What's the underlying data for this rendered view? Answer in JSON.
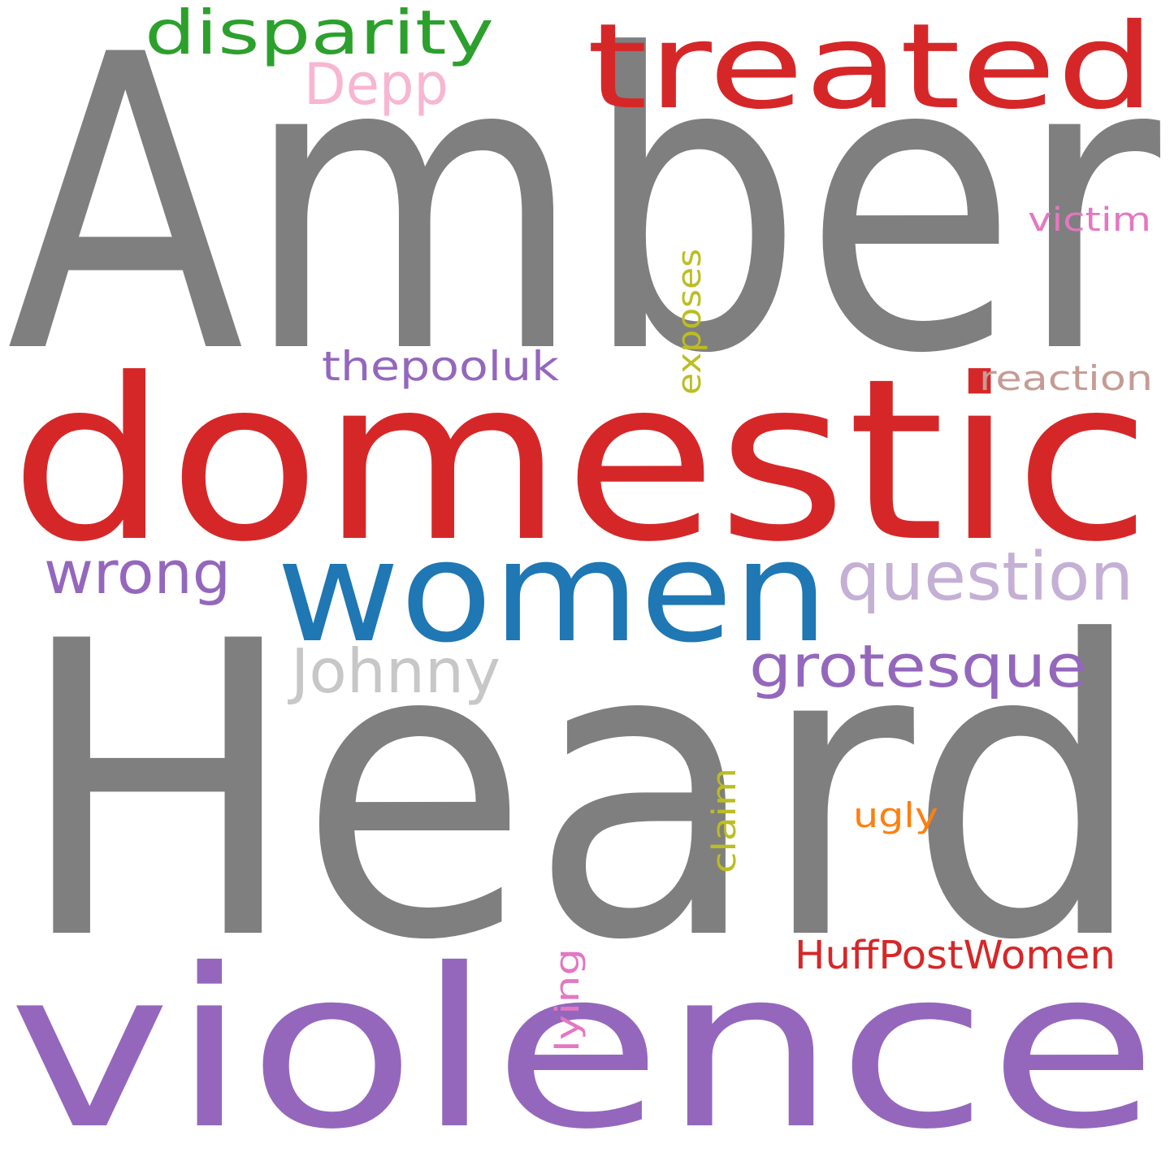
{
  "words": [
    {
      "id": "amber",
      "text": "Amber",
      "color": "#7f7f7f"
    },
    {
      "id": "heard",
      "text": "Heard",
      "color": "#7f7f7f"
    },
    {
      "id": "domestic",
      "text": "domestic",
      "color": "#d62728"
    },
    {
      "id": "violence",
      "text": "violence",
      "color": "#9467bd"
    },
    {
      "id": "treated",
      "text": "treated",
      "color": "#d62728"
    },
    {
      "id": "women",
      "text": "women",
      "color": "#1f77b4"
    },
    {
      "id": "disparity",
      "text": "disparity",
      "color": "#2ca02c"
    },
    {
      "id": "depp",
      "text": "Depp",
      "color": "#f7b6d2"
    },
    {
      "id": "question",
      "text": "question",
      "color": "#c5b0d5"
    },
    {
      "id": "wrong",
      "text": "wrong",
      "color": "#9467bd"
    },
    {
      "id": "johnny",
      "text": "Johnny",
      "color": "#c7c7c7"
    },
    {
      "id": "grotesque",
      "text": "grotesque",
      "color": "#9467bd"
    },
    {
      "id": "thepooluk",
      "text": "thepooluk",
      "color": "#9467bd"
    },
    {
      "id": "exposes",
      "text": "exposes",
      "color": "#bcbd22"
    },
    {
      "id": "reaction",
      "text": "reaction",
      "color": "#c49c94"
    },
    {
      "id": "victim",
      "text": "victim",
      "color": "#e377c2"
    },
    {
      "id": "claim",
      "text": "claim",
      "color": "#bcbd22"
    },
    {
      "id": "ugly",
      "text": "ugly",
      "color": "#ff7f0e"
    },
    {
      "id": "huffpostwomen",
      "text": "HuffPostWomen",
      "color": "#d62728"
    },
    {
      "id": "lying",
      "text": "lying",
      "color": "#e377c2"
    }
  ]
}
